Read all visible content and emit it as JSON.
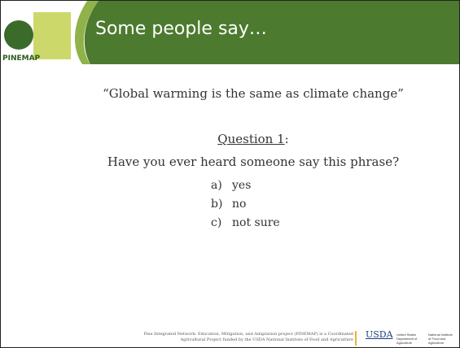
{
  "header": {
    "title": "Some people say…",
    "logo": "PINEMAP"
  },
  "body": {
    "quote": "“Global warming is the same as climate change”",
    "question_label": "Question 1",
    "question_suffix": ":",
    "question": "Have you ever heard someone say this phrase?",
    "options": [
      {
        "letter": "a)",
        "text": "yes"
      },
      {
        "letter": "b)",
        "text": "no"
      },
      {
        "letter": "c)",
        "text": "not sure"
      }
    ]
  },
  "footer": {
    "lines": [
      "Pine Integrated Network: Education, Mitigation, and Adaptation project (PINEMAP) is a Coordinated",
      "Agricultural Project funded by the USDA National Institute of Food and Agriculture"
    ],
    "usda": "USDA",
    "usda_dept": [
      "United States",
      "Department of",
      "Agriculture"
    ],
    "nifa": [
      "National Institute",
      "of Food and",
      "Agriculture"
    ]
  }
}
